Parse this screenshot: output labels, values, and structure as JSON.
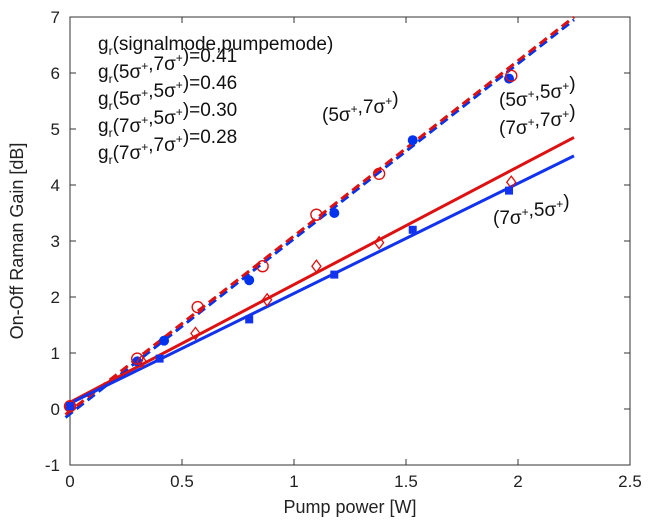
{
  "chart_data": {
    "type": "scatter",
    "xlabel": "Pump power [W]",
    "ylabel": "On-Off Raman Gain [dB]",
    "xlim": [
      0,
      2.5
    ],
    "ylim": [
      -1,
      7
    ],
    "xticks": [
      0,
      0.5,
      1,
      1.5,
      2,
      2.5
    ],
    "yticks": [
      -1,
      0,
      1,
      2,
      3,
      4,
      5,
      6,
      7
    ],
    "xtick_labels": [
      "0",
      "0.5",
      "1",
      "1.5",
      "2",
      "2.5"
    ],
    "ytick_labels": [
      "-1",
      "0",
      "1",
      "2",
      "3",
      "4",
      "5",
      "6",
      "7"
    ],
    "grid": false,
    "series": [
      {
        "color": "#0033ee",
        "marker": "filled-circle",
        "line": "dashed",
        "x": [
          0.0,
          0.3,
          0.42,
          0.8,
          1.18,
          1.53,
          1.96
        ],
        "y": [
          0.05,
          0.85,
          1.22,
          2.3,
          3.5,
          4.8,
          5.9
        ],
        "fit": {
          "x": [
            -0.02,
            2.25
          ],
          "y": [
            -0.15,
            6.95
          ]
        }
      },
      {
        "color": "#dd1111",
        "marker": "open-circle",
        "line": "dashed",
        "x": [
          0.0,
          0.3,
          0.57,
          0.86,
          1.1,
          1.38,
          1.97
        ],
        "y": [
          0.05,
          0.9,
          1.82,
          2.55,
          3.47,
          4.2,
          5.95
        ],
        "fit": {
          "x": [
            -0.02,
            2.25
          ],
          "y": [
            -0.1,
            7.0
          ]
        }
      },
      {
        "color": "#dd1111",
        "marker": "open-diamond",
        "line": "solid",
        "x": [
          0.0,
          0.32,
          0.56,
          0.88,
          1.1,
          1.38,
          1.97
        ],
        "y": [
          0.05,
          0.85,
          1.35,
          1.95,
          2.55,
          2.97,
          4.05
        ],
        "fit": {
          "x": [
            0.0,
            2.25
          ],
          "y": [
            0.12,
            4.85
          ]
        }
      },
      {
        "color": "#1133ee",
        "marker": "filled-square",
        "line": "solid",
        "x": [
          0.0,
          0.4,
          0.8,
          1.18,
          1.53,
          1.96
        ],
        "y": [
          0.05,
          0.9,
          1.6,
          2.4,
          3.2,
          3.9
        ],
        "fit": {
          "x": [
            0.0,
            2.25
          ],
          "y": [
            0.1,
            4.52
          ]
        }
      }
    ],
    "annotations": {
      "legend_title": "(signalmode,pumpemode)",
      "legend_lines": [
        {
          "signal": "5",
          "pump": "7",
          "value": "0.41"
        },
        {
          "signal": "5",
          "pump": "5",
          "value": "0.46"
        },
        {
          "signal": "7",
          "pump": "5",
          "value": "0.30"
        },
        {
          "signal": "7",
          "pump": "7",
          "value": "0.28"
        }
      ],
      "g": "g",
      "sub": "r",
      "sigma": "σ",
      "sup": "+",
      "mode_labels": [
        {
          "a": "5",
          "b": "7"
        },
        {
          "a": "5",
          "b": "5"
        },
        {
          "a": "7",
          "b": "7"
        },
        {
          "a": "7",
          "b": "5"
        }
      ]
    }
  }
}
